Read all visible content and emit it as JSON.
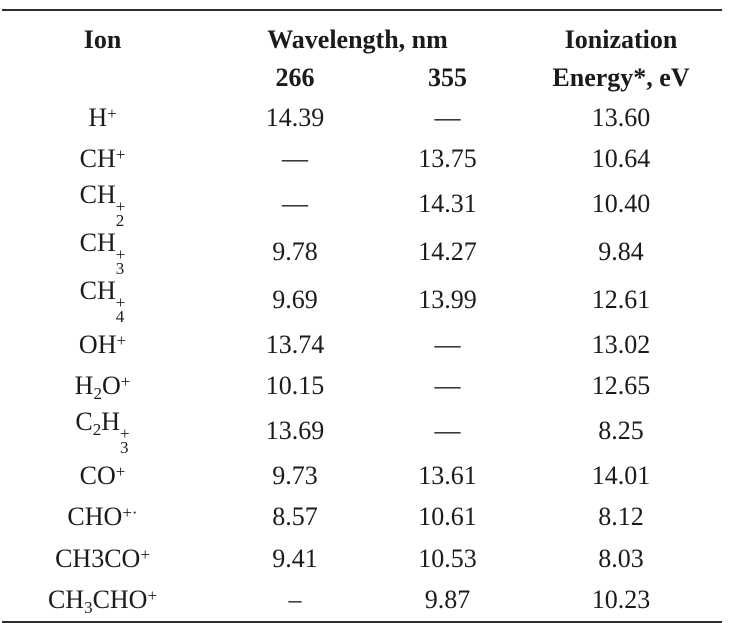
{
  "page": {
    "background": "#ffffff",
    "text_color": "#1b1b1b",
    "rule_color": "#2e2e2e"
  },
  "table": {
    "headers": {
      "ion": "Ion",
      "wavelength_group": "Wavelength, nm",
      "wavelength_266": "266",
      "wavelength_355": "355",
      "ionization_line1": "Ionization",
      "ionization_line2": "Energy*, eV"
    },
    "rows": [
      {
        "name": "H+",
        "ion": [
          {
            "t": "H"
          },
          {
            "sup": "+"
          }
        ],
        "nm266": "14.39",
        "nm355": "—",
        "ie": "13.60"
      },
      {
        "name": "CH+",
        "ion": [
          {
            "t": "CH"
          },
          {
            "sup": "+"
          }
        ],
        "nm266": "—",
        "nm355": "13.75",
        "ie": "10.64"
      },
      {
        "name": "CH2+",
        "ion": [
          {
            "t": "CH"
          },
          {
            "stack": {
              "sub": "2",
              "sup": "+"
            }
          }
        ],
        "nm266": "—",
        "nm355": "14.31",
        "ie": "10.40"
      },
      {
        "name": "CH3+",
        "ion": [
          {
            "t": "CH"
          },
          {
            "stack": {
              "sub": "3",
              "sup": "+"
            }
          }
        ],
        "nm266": "9.78",
        "nm355": "14.27",
        "ie": "9.84"
      },
      {
        "name": "CH4+",
        "ion": [
          {
            "t": "CH"
          },
          {
            "stack": {
              "sub": "4",
              "sup": "+"
            }
          }
        ],
        "nm266": "9.69",
        "nm355": "13.99",
        "ie": "12.61"
      },
      {
        "name": "OH+",
        "ion": [
          {
            "t": "OH"
          },
          {
            "sup": "+"
          }
        ],
        "nm266": "13.74",
        "nm355": "—",
        "ie": "13.02"
      },
      {
        "name": "H2O+",
        "ion": [
          {
            "t": "H"
          },
          {
            "sub": "2"
          },
          {
            "t": "O"
          },
          {
            "sup": "+"
          }
        ],
        "nm266": "10.15",
        "nm355": "—",
        "ie": "12.65"
      },
      {
        "name": "C2H3+",
        "ion": [
          {
            "t": "C"
          },
          {
            "sub": "2"
          },
          {
            "t": "H"
          },
          {
            "stack": {
              "sub": "3",
              "sup": "+"
            }
          }
        ],
        "nm266": "13.69",
        "nm355": "—",
        "ie": "8.25"
      },
      {
        "name": "CO+",
        "ion": [
          {
            "t": "CO"
          },
          {
            "sup": "+"
          }
        ],
        "nm266": "9.73",
        "nm355": "13.61",
        "ie": "14.01"
      },
      {
        "name": "CHO+.",
        "ion": [
          {
            "t": "CHO"
          },
          {
            "sup": "+·"
          }
        ],
        "nm266": "8.57",
        "nm355": "10.61",
        "ie": "8.12"
      },
      {
        "name": "CH3CO+",
        "ion": [
          {
            "t": "CH3CO"
          },
          {
            "sup": "+"
          }
        ],
        "nm266": "9.41",
        "nm355": "10.53",
        "ie": "8.03"
      },
      {
        "name": "CH3CHO+",
        "ion": [
          {
            "t": "CH"
          },
          {
            "sub": "3"
          },
          {
            "t": "CHO"
          },
          {
            "sup": "+"
          }
        ],
        "nm266": "–",
        "nm355": "9.87",
        "ie": "10.23"
      }
    ]
  }
}
